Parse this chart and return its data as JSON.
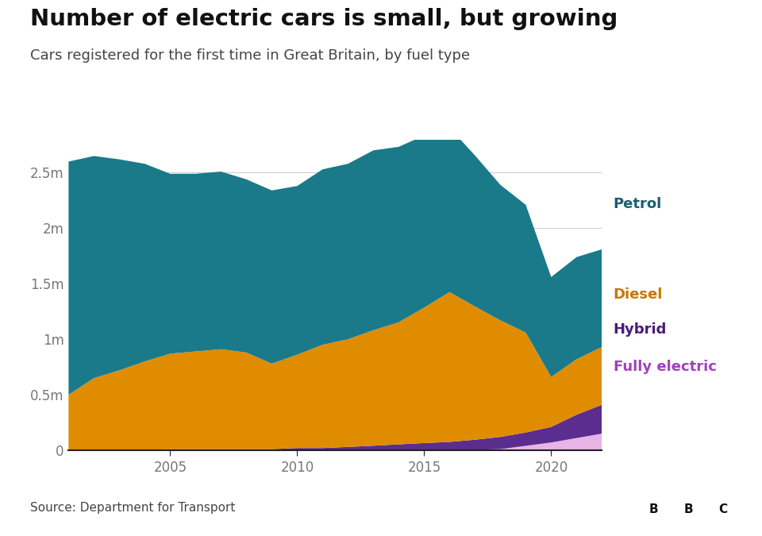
{
  "title": "Number of electric cars is small, but growing",
  "subtitle": "Cars registered for the first time in Great Britain, by fuel type",
  "source": "Source: Department for Transport",
  "years": [
    2001,
    2002,
    2003,
    2004,
    2005,
    2006,
    2007,
    2008,
    2009,
    2010,
    2011,
    2012,
    2013,
    2014,
    2015,
    2016,
    2017,
    2018,
    2019,
    2020,
    2021,
    2022
  ],
  "fully_electric": [
    0,
    0,
    0,
    0,
    0,
    0,
    0,
    0,
    0,
    0,
    0,
    0,
    0.001,
    0.003,
    0.005,
    0.005,
    0.005,
    0.01,
    0.04,
    0.07,
    0.11,
    0.15
  ],
  "hybrid": [
    0,
    0,
    0,
    0,
    0.01,
    0.01,
    0.01,
    0.01,
    0.01,
    0.02,
    0.02,
    0.03,
    0.04,
    0.05,
    0.06,
    0.07,
    0.09,
    0.11,
    0.12,
    0.14,
    0.21,
    0.26
  ],
  "diesel": [
    0.5,
    0.65,
    0.72,
    0.8,
    0.86,
    0.88,
    0.9,
    0.87,
    0.77,
    0.84,
    0.93,
    0.97,
    1.04,
    1.1,
    1.22,
    1.35,
    1.2,
    1.05,
    0.9,
    0.45,
    0.5,
    0.52
  ],
  "petrol": [
    2.1,
    2.0,
    1.9,
    1.78,
    1.62,
    1.6,
    1.6,
    1.56,
    1.56,
    1.52,
    1.58,
    1.58,
    1.62,
    1.58,
    1.55,
    1.48,
    1.36,
    1.22,
    1.15,
    0.9,
    0.92,
    0.88
  ],
  "colors": {
    "fully_electric": "#e8b4e8",
    "hybrid": "#5b2d8e",
    "diesel": "#e08c00",
    "petrol": "#1a7a8a"
  },
  "label_colors": {
    "petrol": "#1a5e6e",
    "diesel": "#c87800",
    "hybrid": "#4a1a7a",
    "fully_electric": "#a040c0"
  },
  "ylim": [
    0,
    2800000
  ],
  "yticks": [
    0,
    500000,
    1000000,
    1500000,
    2000000,
    2500000
  ],
  "ytick_labels": [
    "0",
    "0.5m",
    "1m",
    "1.5m",
    "2m",
    "2.5m"
  ],
  "xticks": [
    2005,
    2010,
    2015,
    2020
  ],
  "background_color": "#ffffff",
  "footer_bg": "#f5f5f5"
}
